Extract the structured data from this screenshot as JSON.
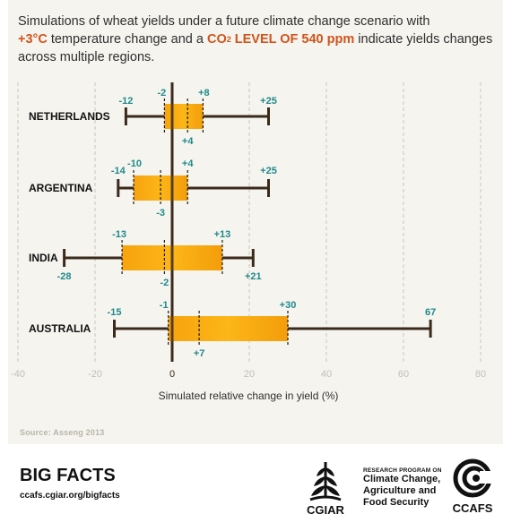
{
  "header": {
    "line1": "Simulations of wheat yields under a future climate change scenario with",
    "temp": "+3°C",
    "mid": " temperature change and a ",
    "co2_a": "CO",
    "co2_sub": "2",
    "co2_b": " LEVEL OF 540 ppm",
    "end": " indicate yields changes across multiple regions."
  },
  "source": "Source: Asseng 2013",
  "footer": {
    "title": "BIG FACTS",
    "url": "ccafs.cgiar.org/bigfacts",
    "cgiar": "CGIAR",
    "program_small": "RESEARCH PROGRAM ON",
    "program_lines": [
      "Climate Change,",
      "Agriculture and",
      "Food Security"
    ],
    "ccafs": "CCAFS"
  },
  "colors": {
    "box": "#fbb116",
    "box_dark": "#f29b0a",
    "whisker": "#3b2a1c",
    "label": "#1f8a8a",
    "grid": "#c9c6bb",
    "highlight": "#d2531a"
  },
  "chart_data": {
    "type": "box",
    "xlabel": "Simulated relative change in yield (%)",
    "xlim": [
      -40,
      80
    ],
    "xticks": [
      -40,
      -20,
      0,
      20,
      40,
      60,
      80
    ],
    "xtick_labels": [
      "-40",
      "-20",
      "0",
      "20",
      "40",
      "60",
      "80"
    ],
    "grid": "vertical dashed",
    "regions": [
      {
        "name": "NETHERLANDS",
        "min": -12,
        "q1": -2,
        "median": 4,
        "q3": 8,
        "max": 25,
        "labels": {
          "min": "-12",
          "q1": "-2",
          "median": "+4",
          "q3": "+8",
          "max": "+25"
        }
      },
      {
        "name": "ARGENTINA",
        "min": -14,
        "q1": -10,
        "median": -3,
        "q3": 4,
        "max": 25,
        "labels": {
          "min": "-14",
          "q1": "-10",
          "median": "-3",
          "q3": "+4",
          "max": "+25"
        }
      },
      {
        "name": "INDIA",
        "min": -28,
        "q1": -13,
        "median": -2,
        "q3": 13,
        "max": 21,
        "labels": {
          "min": "-28",
          "q1": "-13",
          "median": "-2",
          "q3": "+13",
          "max": "+21"
        }
      },
      {
        "name": "AUSTRALIA",
        "min": -15,
        "q1": -1,
        "median": 7,
        "q3": 30,
        "max": 67,
        "labels": {
          "min": "-15",
          "q1": "-1",
          "median": "+7",
          "q3": "+30",
          "max": "67"
        }
      }
    ]
  }
}
